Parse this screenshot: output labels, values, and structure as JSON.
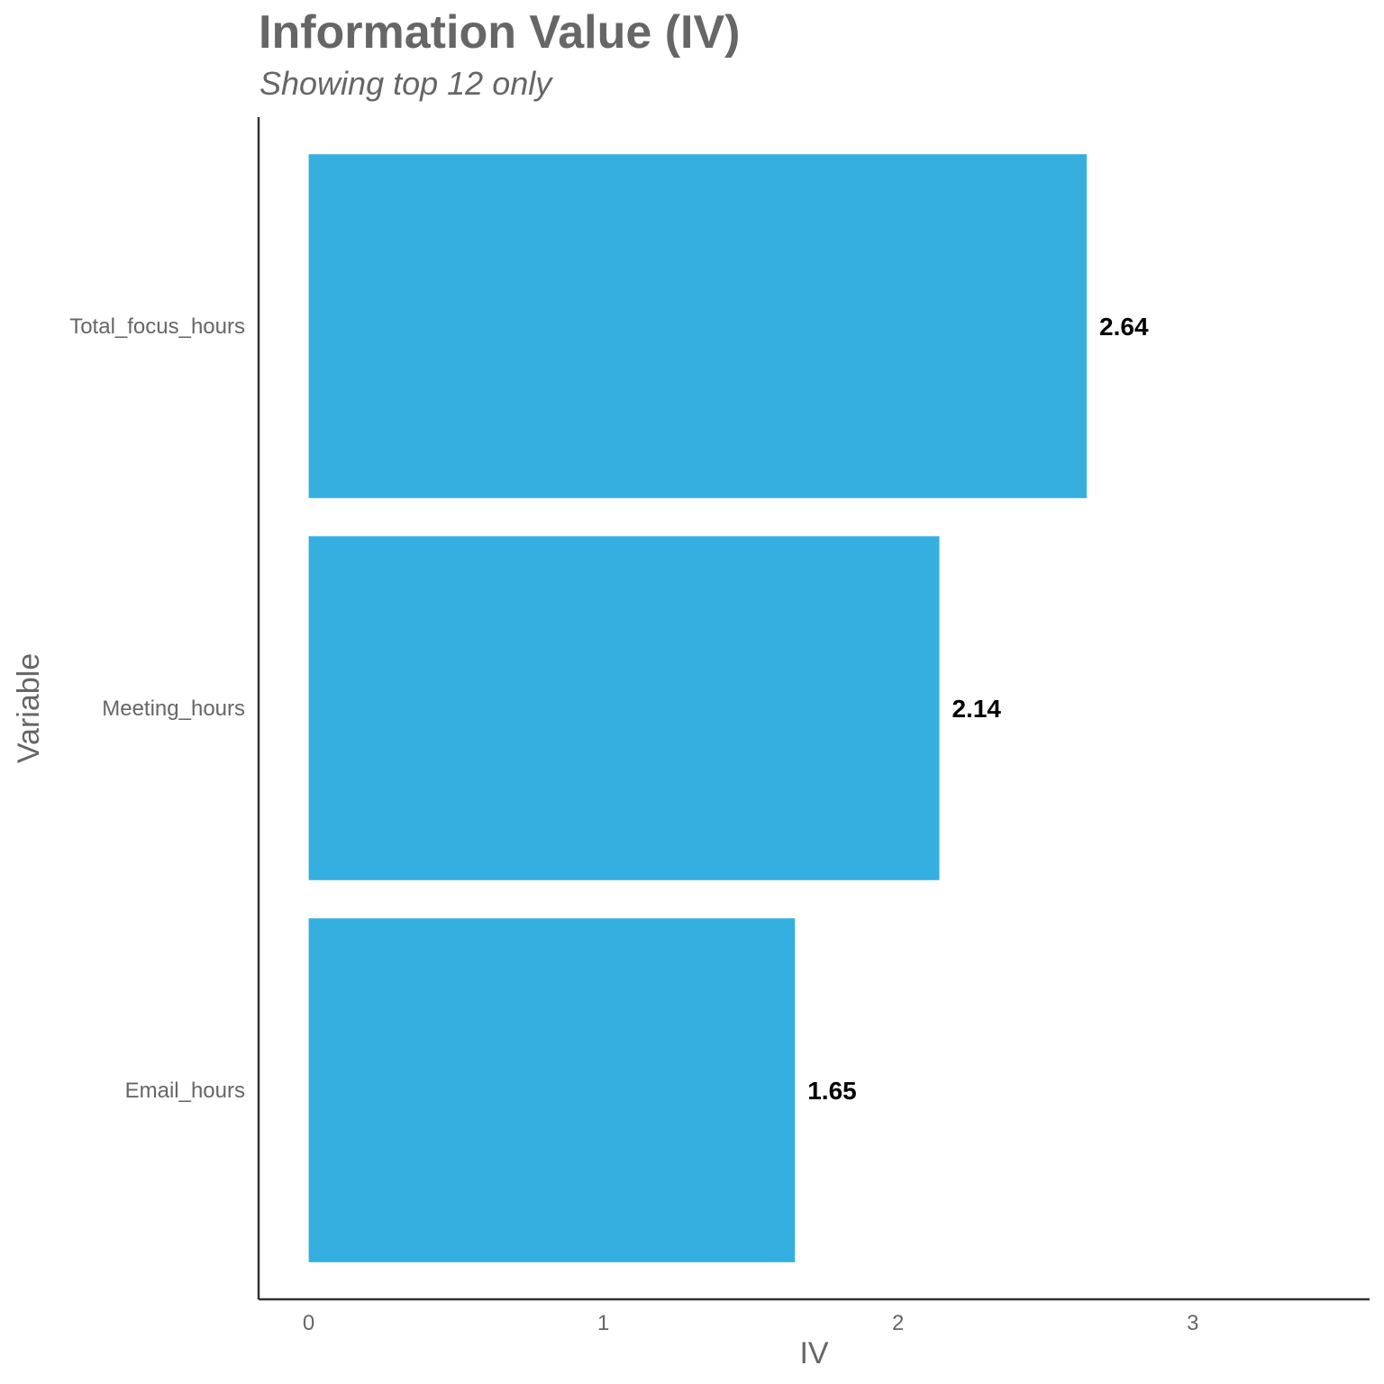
{
  "chart_data": {
    "type": "bar",
    "orientation": "horizontal",
    "title": "Information Value (IV)",
    "subtitle": "Showing top 12 only",
    "xlabel": "IV",
    "ylabel": "Variable",
    "categories": [
      "Total_focus_hours",
      "Meeting_hours",
      "Email_hours"
    ],
    "values": [
      2.64,
      2.14,
      1.65
    ],
    "data_labels": [
      "2.64",
      "2.14",
      "1.65"
    ],
    "xlim": [
      -0.17,
      3.6
    ],
    "xticks": [
      0,
      1,
      2,
      3
    ],
    "xtick_labels": [
      "0",
      "1",
      "2",
      "3"
    ],
    "grid": false,
    "legend": "none",
    "bar_color": "#34AFE0",
    "axis_color": "#333333"
  }
}
